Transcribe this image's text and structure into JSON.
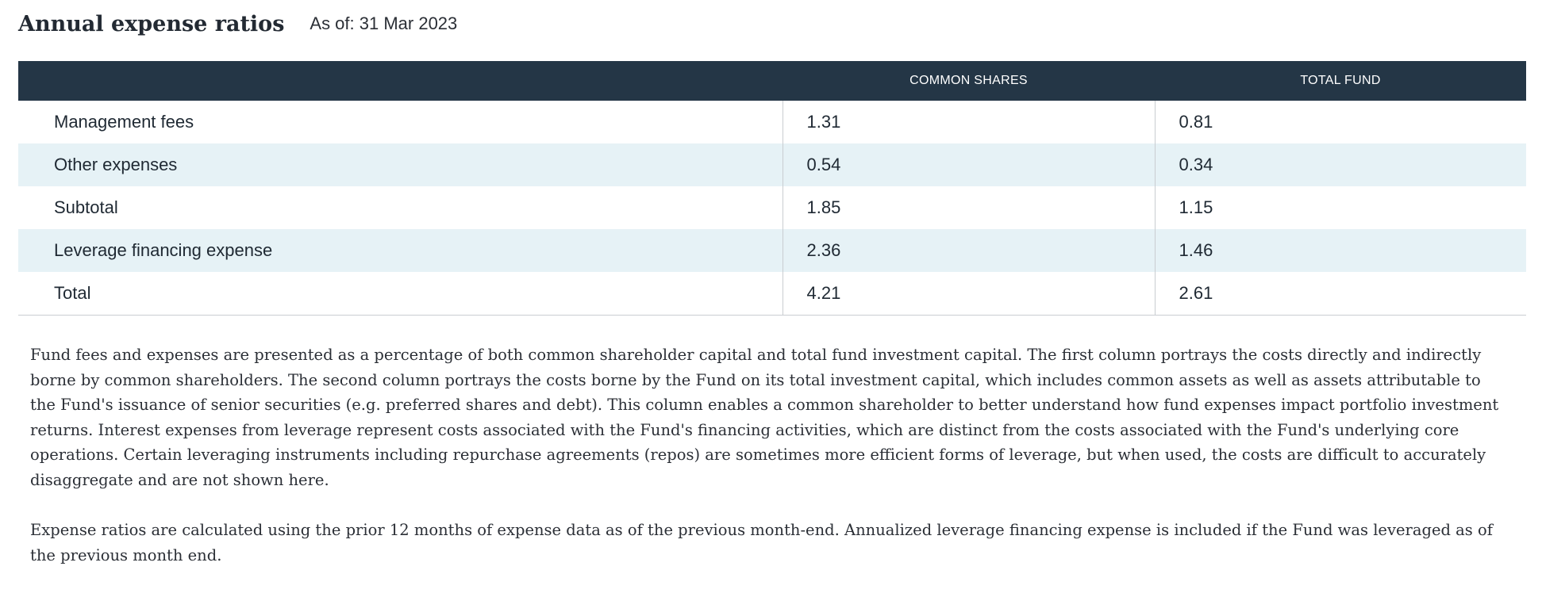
{
  "header": {
    "title": "Annual expense ratios",
    "as_of": "As of: 31 Mar 2023"
  },
  "table": {
    "columns": [
      "",
      "COMMON SHARES",
      "TOTAL FUND"
    ],
    "rows": [
      {
        "label": "Management fees",
        "common_shares": "1.31",
        "total_fund": "0.81"
      },
      {
        "label": "Other expenses",
        "common_shares": "0.54",
        "total_fund": "0.34"
      },
      {
        "label": "Subtotal",
        "common_shares": "1.85",
        "total_fund": "1.15"
      },
      {
        "label": "Leverage financing expense",
        "common_shares": "2.36",
        "total_fund": "1.46"
      },
      {
        "label": "Total",
        "common_shares": "4.21",
        "total_fund": "2.61"
      }
    ]
  },
  "notes": [
    "Fund fees and expenses are presented as a percentage of both common shareholder capital and total fund investment capital. The first column portrays the costs directly and indirectly borne by common shareholders. The second column portrays the costs borne by the Fund on its total investment capital, which includes common assets as well as assets attributable to the Fund's issuance of senior securities (e.g. preferred shares and debt). This column enables a common shareholder to better understand how fund expenses impact portfolio investment returns. Interest expenses from leverage represent costs associated with the Fund's financing activities, which are distinct from the costs associated with the Fund's underlying core operations. Certain leveraging instruments including repurchase agreements (repos) are sometimes more efficient forms of leverage, but when used, the costs are difficult to accurately disaggregate and are not shown here.",
    "Expense ratios are calculated using the prior 12 months of expense data as of the previous month-end. Annualized leverage financing expense is included if the Fund was leveraged as of the previous month end."
  ],
  "colors": {
    "header_bg": "#243646",
    "alt_row_bg": "#e6f2f6",
    "text": "#232a33"
  }
}
